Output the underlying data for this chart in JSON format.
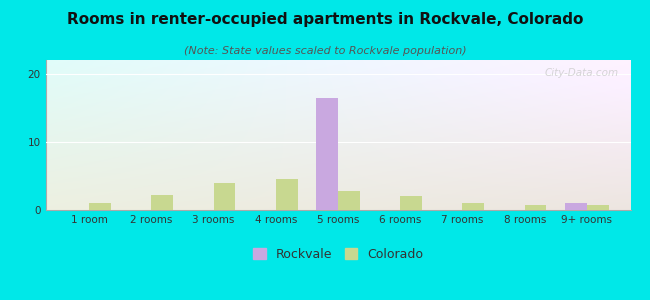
{
  "title": "Rooms in renter-occupied apartments in Rockvale, Colorado",
  "subtitle": "(Note: State values scaled to Rockvale population)",
  "categories": [
    "1 room",
    "2 rooms",
    "3 rooms",
    "4 rooms",
    "5 rooms",
    "6 rooms",
    "7 rooms",
    "8 rooms",
    "9+ rooms"
  ],
  "rockvale_values": [
    0,
    0,
    0,
    0,
    16.5,
    0,
    0,
    0,
    1.0
  ],
  "colorado_values": [
    1.0,
    2.2,
    4.0,
    4.5,
    2.8,
    2.0,
    1.0,
    0.8,
    0.8
  ],
  "rockvale_color": "#c9a8e0",
  "colorado_color": "#c8d890",
  "background_color": "#00e8e8",
  "ylim": [
    0,
    22
  ],
  "yticks": [
    0,
    10,
    20
  ],
  "bar_width": 0.35,
  "title_fontsize": 11,
  "subtitle_fontsize": 8,
  "tick_fontsize": 7.5,
  "legend_fontsize": 9,
  "watermark": "City-Data.com",
  "grid_color": "#ffffff",
  "axis_color": "#aaaaaa"
}
